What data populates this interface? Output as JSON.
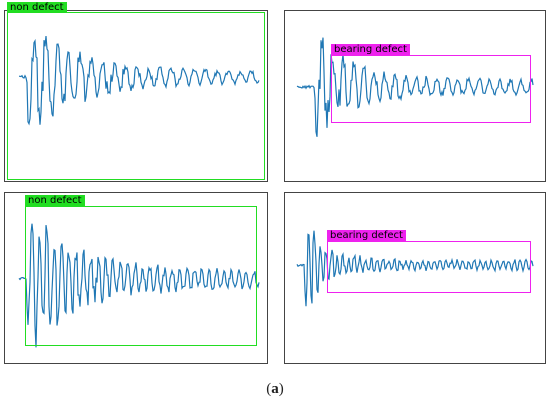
{
  "colors": {
    "signal": "#1f77b4",
    "non_defect": "#22dd22",
    "bearing_defect": "#ee22ee",
    "frame": "#444444"
  },
  "panels": [
    {
      "label": "non defect",
      "class": "non_defect"
    },
    {
      "label": "bearing defect",
      "class": "bearing_defect"
    },
    {
      "label": "non defect",
      "class": "non_defect"
    },
    {
      "label": "bearing defect",
      "class": "bearing_defect"
    }
  ],
  "caption": {
    "open": "(",
    "letter": "a",
    "close": ")"
  }
}
